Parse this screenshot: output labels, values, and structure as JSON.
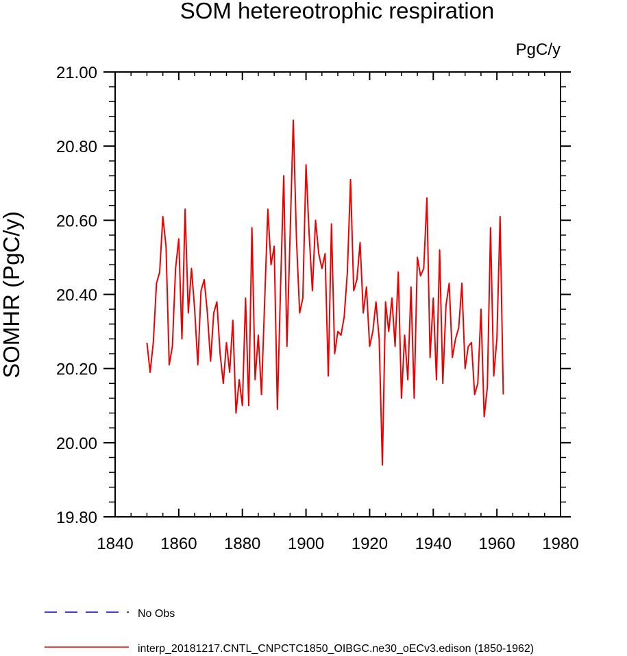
{
  "chart_data": {
    "type": "line",
    "title": "SOM hetereotrophic respiration",
    "units_label": "PgC/y",
    "ylabel": "SOMHR  (PgC/y)",
    "xlabel": "",
    "xlim": [
      1840,
      1980
    ],
    "ylim": [
      19.8,
      21.0
    ],
    "x_ticks": [
      1840,
      1860,
      1880,
      1900,
      1920,
      1940,
      1960,
      1980
    ],
    "x_tick_labels": [
      "1840",
      "1860",
      "1880",
      "1900",
      "1920",
      "1940",
      "1960",
      "1980"
    ],
    "y_ticks": [
      19.8,
      20.0,
      20.2,
      20.4,
      20.6,
      20.8,
      21.0
    ],
    "y_tick_labels": [
      "19.80",
      "20.00",
      "20.20",
      "20.40",
      "20.60",
      "20.80",
      "21.00"
    ],
    "grid": false,
    "legend_position": "bottom-left",
    "series": [
      {
        "name": "No Obs",
        "color": "#0000cc",
        "dashed": true,
        "x": [],
        "values": []
      },
      {
        "name": "interp_20181217.CNTL_CNPCTC1850_OIBGC.ne30_oECv3.edison (1850-1962)",
        "color": "#ee0000",
        "dashed": false,
        "x": [
          1850,
          1851,
          1852,
          1853,
          1854,
          1855,
          1856,
          1857,
          1858,
          1859,
          1860,
          1861,
          1862,
          1863,
          1864,
          1865,
          1866,
          1867,
          1868,
          1869,
          1870,
          1871,
          1872,
          1873,
          1874,
          1875,
          1876,
          1877,
          1878,
          1879,
          1880,
          1881,
          1882,
          1883,
          1884,
          1885,
          1886,
          1887,
          1888,
          1889,
          1890,
          1891,
          1892,
          1893,
          1894,
          1895,
          1896,
          1897,
          1898,
          1899,
          1900,
          1901,
          1902,
          1903,
          1904,
          1905,
          1906,
          1907,
          1908,
          1909,
          1910,
          1911,
          1912,
          1913,
          1914,
          1915,
          1916,
          1917,
          1918,
          1919,
          1920,
          1921,
          1922,
          1923,
          1924,
          1925,
          1926,
          1927,
          1928,
          1929,
          1930,
          1931,
          1932,
          1933,
          1934,
          1935,
          1936,
          1937,
          1938,
          1939,
          1940,
          1941,
          1942,
          1943,
          1944,
          1945,
          1946,
          1947,
          1948,
          1949,
          1950,
          1951,
          1952,
          1953,
          1954,
          1955,
          1956,
          1957,
          1958,
          1959,
          1960,
          1961,
          1962
        ],
        "values": [
          20.27,
          20.19,
          20.27,
          20.43,
          20.46,
          20.61,
          20.53,
          20.21,
          20.26,
          20.47,
          20.55,
          20.28,
          20.63,
          20.35,
          20.47,
          20.36,
          20.21,
          20.41,
          20.44,
          20.35,
          20.22,
          20.35,
          20.38,
          20.24,
          20.16,
          20.27,
          20.19,
          20.33,
          20.08,
          20.17,
          20.1,
          20.39,
          20.1,
          20.58,
          20.17,
          20.29,
          20.13,
          20.38,
          20.63,
          20.48,
          20.53,
          20.09,
          20.42,
          20.72,
          20.26,
          20.56,
          20.87,
          20.55,
          20.35,
          20.39,
          20.75,
          20.56,
          20.41,
          20.6,
          20.51,
          20.47,
          20.51,
          20.18,
          20.59,
          20.24,
          20.3,
          20.29,
          20.34,
          20.46,
          20.71,
          20.41,
          20.44,
          20.54,
          20.35,
          20.42,
          20.26,
          20.3,
          20.38,
          20.28,
          19.94,
          20.38,
          20.3,
          20.39,
          20.26,
          20.46,
          20.12,
          20.29,
          20.17,
          20.42,
          20.12,
          20.5,
          20.45,
          20.47,
          20.66,
          20.23,
          20.39,
          20.17,
          20.52,
          20.16,
          20.37,
          20.43,
          20.23,
          20.28,
          20.31,
          20.43,
          20.2,
          20.26,
          20.27,
          20.13,
          20.16,
          20.36,
          20.07,
          20.15,
          20.58,
          20.18,
          20.28,
          20.61,
          20.13
        ]
      }
    ]
  }
}
